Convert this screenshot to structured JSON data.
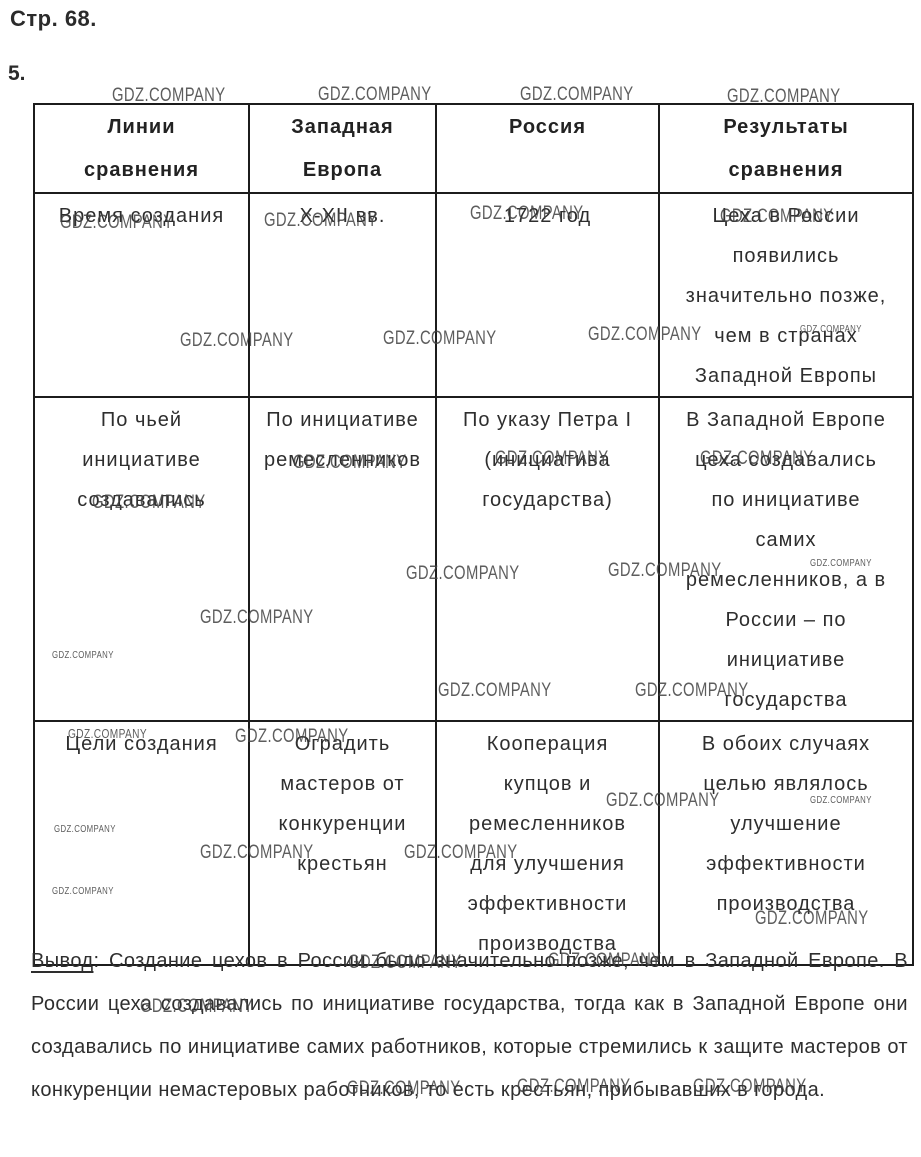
{
  "page": {
    "header": "Стр. 68.",
    "exercise_number": "5."
  },
  "watermark": {
    "text": "GDZ.COMPANY"
  },
  "table": {
    "headers": [
      "Линии сравнения",
      "Западная Европа",
      "Россия",
      "Результаты сравнения"
    ],
    "rows": [
      [
        "Время создания",
        "X-XII вв.",
        "1722 год",
        "Цеха в России появились значительно позже, чем в странах Западной Европы"
      ],
      [
        "По чьей инициативе создавались",
        "По инициативе ремесленников",
        "По указу Петра I (инициатива государства)",
        "В Западной Европе цеха создавались по инициативе самих ремесленников, а в России – по инициативе государства"
      ],
      [
        "Цели создания",
        "Оградить мастеров от конкуренции крестьян",
        "Кооперация купцов и ремесленников для улучшения эффективности производства",
        "В обоих случаях целью являлось улучшение эффективности производства"
      ]
    ]
  },
  "conclusion": {
    "label": "Вывод",
    "text": ": Создание цехов в России было значительно позже, чем в Западной Европе. В России цеха создавались по инициативе государства, тогда как в Западной Европе они создавались по инициативе самих работников, которые стремились к защите мастеров от конкуренции немастеровых работников, то есть крестьян, прибывавших в города."
  }
}
